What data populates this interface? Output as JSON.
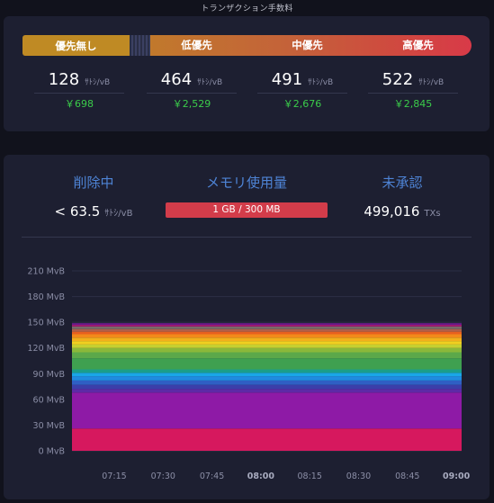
{
  "fees": {
    "title": "トランザクション手数料",
    "priorities": [
      {
        "label": "優先無し",
        "rate": "128",
        "unit": "ｻﾄｼ/vB",
        "fiat": "￥698"
      },
      {
        "label": "低優先",
        "rate": "464",
        "unit": "ｻﾄｼ/vB",
        "fiat": "￥2,529"
      },
      {
        "label": "中優先",
        "rate": "491",
        "unit": "ｻﾄｼ/vB",
        "fiat": "￥2,676"
      },
      {
        "label": "高優先",
        "rate": "522",
        "unit": "ｻﾄｼ/vB",
        "fiat": "￥2,845"
      }
    ],
    "colors": {
      "none": "#bf8a24",
      "low": "#c1792c",
      "high": "#d83a48",
      "fiat": "#3bcc4a"
    }
  },
  "mempool": {
    "purging": {
      "label": "削除中",
      "value": "< 63.5",
      "unit": "ｻﾄｼ/vB"
    },
    "memory": {
      "label": "メモリ使用量",
      "value": "1 GB / 300 MB"
    },
    "unconfirmed": {
      "label": "未承認",
      "value": "499,016",
      "unit": "TXs"
    }
  },
  "chart_data": {
    "type": "area",
    "stacked": true,
    "x": [
      "07:15",
      "07:30",
      "07:45",
      "08:00",
      "08:15",
      "08:30",
      "08:45",
      "09:00"
    ],
    "x_bold": [
      "08:00",
      "09:00"
    ],
    "y_ticks": [
      "0 MvB",
      "30 MvB",
      "60 MvB",
      "90 MvB",
      "120 MvB",
      "150 MvB",
      "180 MvB",
      "210 MvB"
    ],
    "ylim": [
      0,
      210
    ],
    "grid": true,
    "layers": [
      {
        "color": "#d6185e",
        "values": [
          26,
          26,
          26,
          26,
          26,
          26,
          26,
          26,
          26,
          26
        ]
      },
      {
        "color": "#8e1aa6",
        "values": [
          42,
          42,
          42,
          42,
          42,
          42,
          42,
          42,
          42,
          42
        ]
      },
      {
        "color": "#5d2aa6",
        "values": [
          4,
          4,
          4,
          4,
          4,
          4,
          4,
          4,
          4,
          4
        ]
      },
      {
        "color": "#3b3faa",
        "values": [
          5,
          5,
          5,
          5,
          5,
          5,
          5,
          5,
          5,
          5
        ]
      },
      {
        "color": "#2f5fc4",
        "values": [
          5,
          5,
          5,
          5,
          5,
          5,
          5,
          5,
          5,
          5
        ]
      },
      {
        "color": "#1f8be0",
        "values": [
          5,
          5,
          5,
          5,
          5,
          5,
          5,
          5,
          5,
          5
        ]
      },
      {
        "color": "#19a6e8",
        "values": [
          4,
          4,
          4,
          4,
          4,
          4,
          4,
          4,
          4,
          4
        ]
      },
      {
        "color": "#1b9e8a",
        "values": [
          4,
          4,
          4,
          4,
          4,
          4,
          4,
          4,
          4,
          4
        ]
      },
      {
        "color": "#3fa050",
        "values": [
          13,
          13,
          13,
          13,
          13,
          13,
          13,
          13,
          13,
          13
        ]
      },
      {
        "color": "#5ca84a",
        "values": [
          7,
          7,
          7,
          7,
          7,
          7,
          7,
          7,
          7,
          7
        ]
      },
      {
        "color": "#8bb83a",
        "values": [
          5,
          5,
          5,
          5,
          5,
          5,
          5,
          5,
          5,
          5
        ]
      },
      {
        "color": "#c5d030",
        "values": [
          4,
          4,
          4,
          4,
          4,
          4,
          4,
          4,
          4,
          4
        ]
      },
      {
        "color": "#f0d020",
        "values": [
          4,
          4,
          4,
          4,
          4,
          4,
          4,
          4,
          4,
          4
        ]
      },
      {
        "color": "#f2b01c",
        "values": [
          4,
          4,
          4,
          4,
          4,
          4,
          4,
          4,
          4,
          4
        ]
      },
      {
        "color": "#f28a1a",
        "values": [
          4,
          4,
          4,
          4,
          4,
          4,
          4,
          4,
          4,
          4
        ]
      },
      {
        "color": "#e8601e",
        "values": [
          3,
          3,
          3,
          3,
          3,
          3,
          3,
          3,
          3,
          3
        ]
      },
      {
        "color": "#b06048",
        "values": [
          3,
          3,
          3,
          3,
          3,
          3,
          3,
          3,
          3,
          3
        ]
      },
      {
        "color": "#7a6a68",
        "values": [
          3,
          3,
          3,
          3,
          3,
          3,
          3,
          3,
          3,
          3
        ]
      },
      {
        "color": "#a01a70",
        "values": [
          2,
          2,
          2,
          2,
          2,
          2,
          2,
          2,
          2,
          2
        ]
      },
      {
        "color": "#6a1a8a",
        "values": [
          2,
          2,
          2,
          2,
          2,
          2,
          2,
          2,
          2,
          2
        ]
      }
    ]
  }
}
